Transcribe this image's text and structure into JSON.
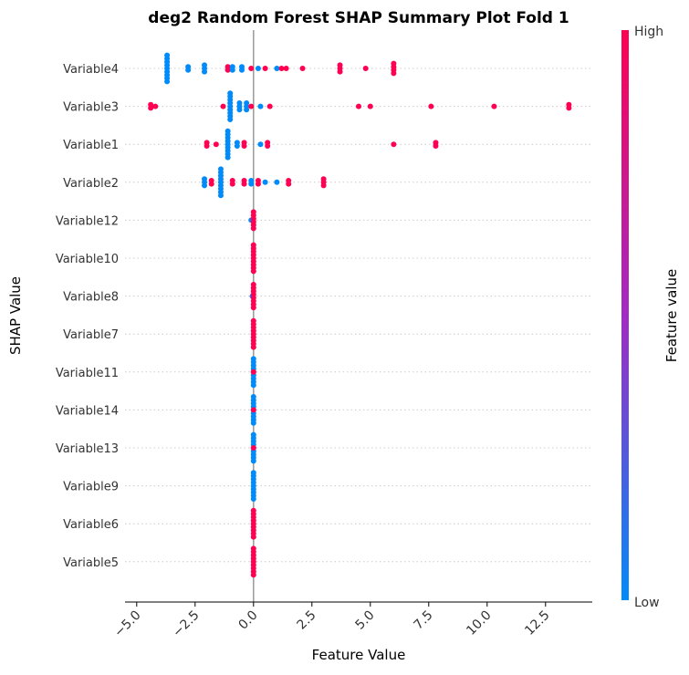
{
  "chart_data": {
    "type": "scatter",
    "subtype": "shap-beeswarm",
    "title": "deg2 Random Forest SHAP Summary Plot Fold 1",
    "xlabel": "Feature Value",
    "ylabel": "SHAP Value",
    "xlim": [
      -5.5,
      14.5
    ],
    "xticks": [
      -5.0,
      -2.5,
      0.0,
      2.5,
      5.0,
      7.5,
      10.0,
      12.5
    ],
    "xtick_labels": [
      "−5.0",
      "−2.5",
      "0.0",
      "2.5",
      "5.0",
      "7.5",
      "10.0",
      "12.5"
    ],
    "grid": false,
    "zero_line": true,
    "colorbar": {
      "label": "Feature value",
      "high_label": "High",
      "low_label": "Low",
      "low_color": "#008bfb",
      "mid_color": "#a22ac4",
      "high_color": "#ff0052"
    },
    "colors": {
      "low": "#008bfb",
      "high": "#ff0052",
      "mid": "#c01f9c",
      "zero_line": "#999999",
      "row_line": "#cccccc"
    },
    "features": [
      {
        "name": "Variable4",
        "points": [
          {
            "x": -3.7,
            "n": 9,
            "c": "low"
          },
          {
            "x": -2.8,
            "n": 2,
            "c": "low"
          },
          {
            "x": -2.1,
            "n": 3,
            "c": "low"
          },
          {
            "x": -1.1,
            "n": 2,
            "c": "high"
          },
          {
            "x": -0.9,
            "n": 2,
            "c": "low"
          },
          {
            "x": -0.5,
            "n": 2,
            "c": "low"
          },
          {
            "x": -0.1,
            "n": 1,
            "c": "high"
          },
          {
            "x": 0.2,
            "n": 1,
            "c": "low"
          },
          {
            "x": 0.5,
            "n": 1,
            "c": "high"
          },
          {
            "x": 1.0,
            "n": 1,
            "c": "low"
          },
          {
            "x": 1.2,
            "n": 1,
            "c": "high"
          },
          {
            "x": 1.4,
            "n": 1,
            "c": "high"
          },
          {
            "x": 2.1,
            "n": 1,
            "c": "high"
          },
          {
            "x": 3.7,
            "n": 3,
            "c": "high"
          },
          {
            "x": 4.8,
            "n": 1,
            "c": "high"
          },
          {
            "x": 6.0,
            "n": 4,
            "c": "high"
          }
        ]
      },
      {
        "name": "Variable3",
        "points": [
          {
            "x": -4.4,
            "n": 2,
            "c": "high"
          },
          {
            "x": -4.2,
            "n": 1,
            "c": "high"
          },
          {
            "x": -1.3,
            "n": 1,
            "c": "high"
          },
          {
            "x": -1.0,
            "n": 9,
            "c": "low"
          },
          {
            "x": -0.6,
            "n": 3,
            "c": "low"
          },
          {
            "x": -0.3,
            "n": 3,
            "c": "low"
          },
          {
            "x": -0.1,
            "n": 1,
            "c": "high"
          },
          {
            "x": 0.3,
            "n": 1,
            "c": "low"
          },
          {
            "x": 0.7,
            "n": 1,
            "c": "high"
          },
          {
            "x": 4.5,
            "n": 1,
            "c": "high"
          },
          {
            "x": 5.0,
            "n": 1,
            "c": "high"
          },
          {
            "x": 7.6,
            "n": 1,
            "c": "high"
          },
          {
            "x": 10.3,
            "n": 1,
            "c": "high"
          },
          {
            "x": 13.5,
            "n": 2,
            "c": "high"
          }
        ]
      },
      {
        "name": "Variable1",
        "points": [
          {
            "x": -2.0,
            "n": 2,
            "c": "high"
          },
          {
            "x": -1.6,
            "n": 1,
            "c": "high"
          },
          {
            "x": -1.1,
            "n": 9,
            "c": "low"
          },
          {
            "x": -0.7,
            "n": 2,
            "c": "low"
          },
          {
            "x": -0.4,
            "n": 2,
            "c": "high"
          },
          {
            "x": 0.3,
            "n": 1,
            "c": "low"
          },
          {
            "x": 0.6,
            "n": 2,
            "c": "high"
          },
          {
            "x": 6.0,
            "n": 1,
            "c": "high"
          },
          {
            "x": 7.8,
            "n": 2,
            "c": "high"
          }
        ]
      },
      {
        "name": "Variable2",
        "points": [
          {
            "x": -2.1,
            "n": 3,
            "c": "low"
          },
          {
            "x": -1.8,
            "n": 2,
            "c": "high"
          },
          {
            "x": -1.4,
            "n": 9,
            "c": "low"
          },
          {
            "x": -0.9,
            "n": 2,
            "c": "high"
          },
          {
            "x": -0.4,
            "n": 2,
            "c": "high"
          },
          {
            "x": -0.1,
            "n": 2,
            "c": "low"
          },
          {
            "x": 0.2,
            "n": 2,
            "c": "high"
          },
          {
            "x": 0.5,
            "n": 1,
            "c": "low"
          },
          {
            "x": 1.0,
            "n": 1,
            "c": "low"
          },
          {
            "x": 1.5,
            "n": 2,
            "c": "high"
          },
          {
            "x": 3.0,
            "n": 3,
            "c": "high"
          }
        ]
      },
      {
        "name": "Variable12",
        "points": [
          {
            "x": -0.1,
            "n": 1,
            "c": "low"
          },
          {
            "x": 0.0,
            "n": 6,
            "c": "high"
          }
        ]
      },
      {
        "name": "Variable10",
        "points": [
          {
            "x": 0.0,
            "n": 9,
            "c": "high"
          }
        ]
      },
      {
        "name": "Variable8",
        "points": [
          {
            "x": -0.05,
            "n": 1,
            "c": "low"
          },
          {
            "x": 0.0,
            "n": 8,
            "c": "high"
          }
        ]
      },
      {
        "name": "Variable7",
        "points": [
          {
            "x": 0.0,
            "n": 9,
            "c": "high"
          }
        ]
      },
      {
        "name": "Variable11",
        "points": [
          {
            "x": 0.0,
            "n": 9,
            "c": "low"
          },
          {
            "x": 0.0,
            "n": 1,
            "c": "high"
          }
        ]
      },
      {
        "name": "Variable14",
        "points": [
          {
            "x": 0.0,
            "n": 9,
            "c": "low"
          },
          {
            "x": 0.0,
            "n": 1,
            "c": "high"
          }
        ]
      },
      {
        "name": "Variable13",
        "points": [
          {
            "x": 0.0,
            "n": 9,
            "c": "low"
          },
          {
            "x": 0.0,
            "n": 1,
            "c": "high"
          }
        ]
      },
      {
        "name": "Variable9",
        "points": [
          {
            "x": 0.0,
            "n": 9,
            "c": "low"
          }
        ]
      },
      {
        "name": "Variable6",
        "points": [
          {
            "x": 0.0,
            "n": 9,
            "c": "high"
          }
        ]
      },
      {
        "name": "Variable5",
        "points": [
          {
            "x": 0.0,
            "n": 9,
            "c": "high"
          }
        ]
      }
    ]
  }
}
